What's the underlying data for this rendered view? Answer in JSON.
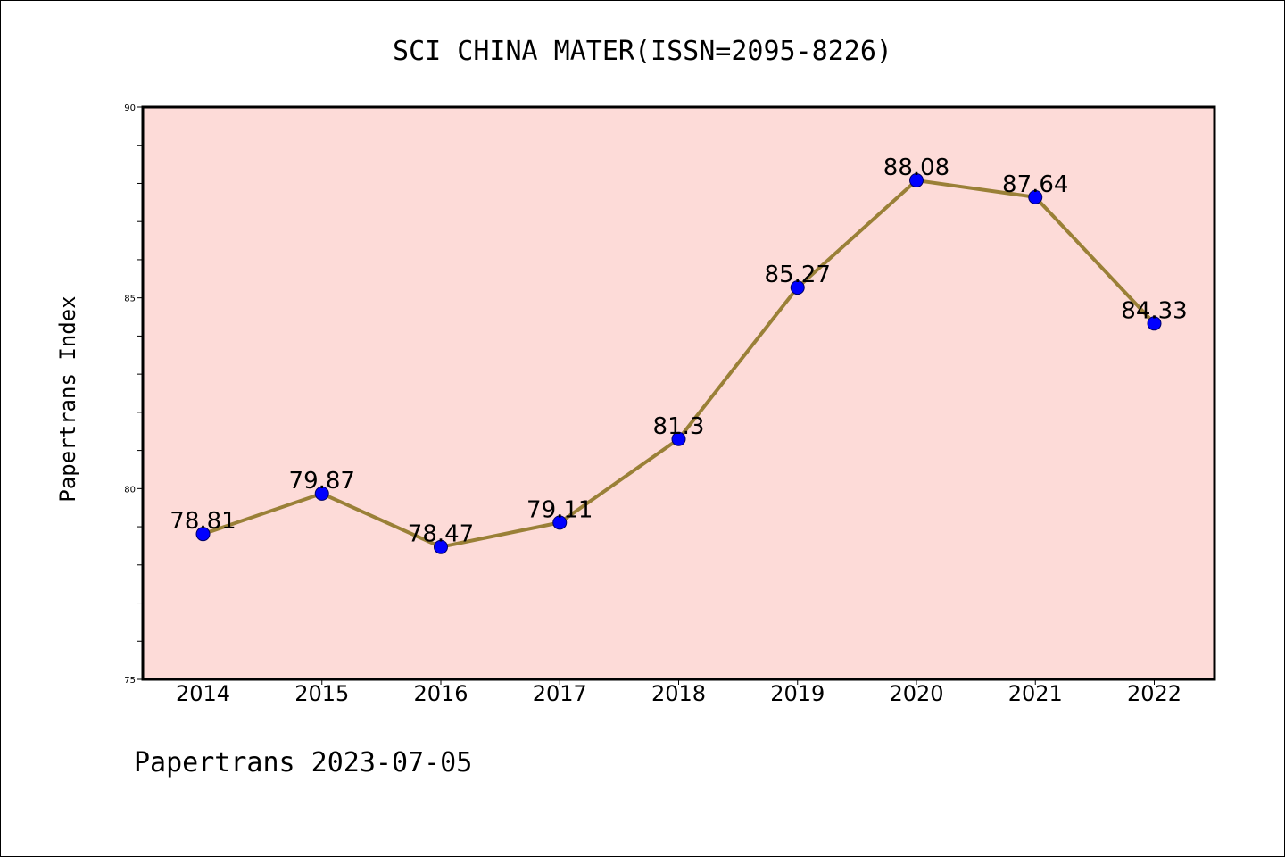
{
  "chart_data": {
    "type": "line",
    "title": "SCI CHINA MATER(ISSN=2095-8226)",
    "ylabel": "Papertrans Index",
    "xlabel": "",
    "footer": "Papertrans 2023-07-05",
    "categories": [
      "2014",
      "2015",
      "2016",
      "2017",
      "2018",
      "2019",
      "2020",
      "2021",
      "2022"
    ],
    "values": [
      78.81,
      79.87,
      78.47,
      79.11,
      81.3,
      85.27,
      88.08,
      87.64,
      84.33
    ],
    "value_labels": [
      "78.81",
      "79.87",
      "78.47",
      "79.11",
      "81.3",
      "85.27",
      "88.08",
      "87.64",
      "84.33"
    ],
    "ylim": [
      75,
      90
    ],
    "yticks": [
      75,
      80,
      85,
      90
    ],
    "grid": false,
    "colors": {
      "plot_background": "#fddbd8",
      "line": "#9a8037",
      "marker": "#0000ff",
      "marker_edge": "#000066"
    }
  }
}
